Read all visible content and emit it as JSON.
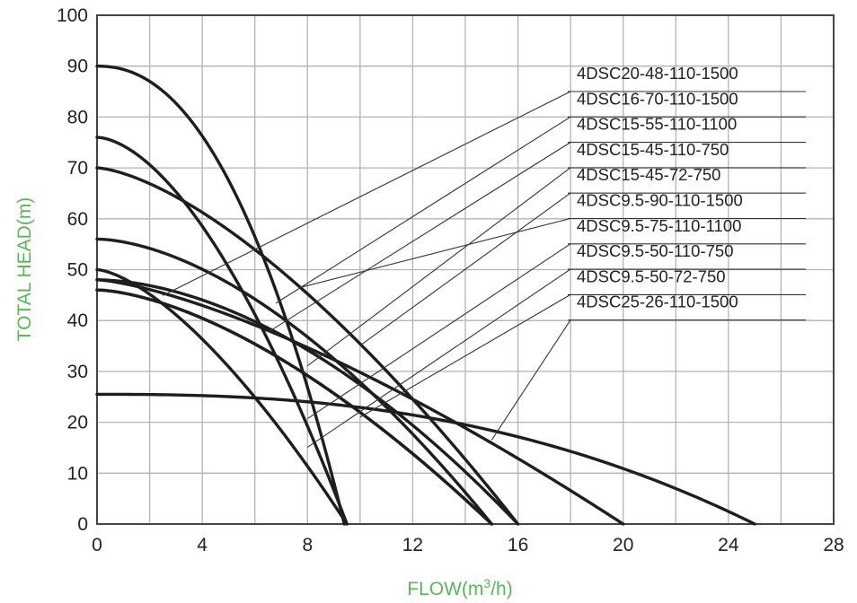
{
  "chart_data": {
    "type": "line",
    "title": "",
    "xlabel_main": "FLOW(m",
    "xlabel_sup": "3",
    "xlabel_tail": "/h)",
    "ylabel": "TOTAL HEAD(m)",
    "xlim": [
      0,
      28
    ],
    "ylim": [
      0,
      100
    ],
    "x_ticks": [
      0,
      4,
      8,
      12,
      16,
      20,
      24,
      28
    ],
    "y_ticks": [
      0,
      10,
      20,
      30,
      40,
      50,
      60,
      70,
      80,
      90,
      100
    ],
    "x_grid_step": 2,
    "y_grid_step": 10,
    "grid": true,
    "legend_position": "top-right",
    "series": [
      {
        "name": "4DSC20-48-110-1500",
        "shutoff": 48,
        "max_flow": 20,
        "shape": 1.4,
        "points": [
          [
            0,
            48
          ],
          [
            2,
            47.1
          ],
          [
            4,
            45.3
          ],
          [
            6,
            42.6
          ],
          [
            8,
            39.1
          ],
          [
            10,
            34.8
          ],
          [
            12,
            29.7
          ],
          [
            14,
            23.8
          ],
          [
            16,
            17
          ],
          [
            18,
            9.1
          ],
          [
            20,
            0
          ]
        ],
        "label_anchor": [
          2.5,
          44.9
        ]
      },
      {
        "name": "4DSC16-70-110-1500",
        "shutoff": 70,
        "max_flow": 16,
        "shape": 1.5,
        "points": [
          [
            0,
            70
          ],
          [
            2,
            68.2
          ],
          [
            4,
            64.9
          ],
          [
            6,
            60.4
          ],
          [
            8,
            54.9
          ],
          [
            10,
            48.4
          ],
          [
            12,
            40.7
          ],
          [
            14,
            29.5
          ],
          [
            16,
            0
          ]
        ],
        "label_anchor": [
          6.8,
          43.4
        ]
      },
      {
        "name": "4DSC15-55-110-1100",
        "shutoff": 56,
        "max_flow": 15,
        "shape": 1.7,
        "points": [
          [
            0,
            56
          ],
          [
            2,
            55
          ],
          [
            4,
            52.7
          ],
          [
            6,
            49.1
          ],
          [
            8,
            44.1
          ],
          [
            10,
            37.8
          ],
          [
            12,
            29.6
          ],
          [
            13,
            24.4
          ],
          [
            14,
            17.7
          ],
          [
            15,
            0
          ]
        ],
        "label_anchor": [
          6.5,
          37.7
        ]
      },
      {
        "name": "4DSC15-45-110-750",
        "shutoff": 46,
        "max_flow": 15,
        "shape": 1.6,
        "points": [
          [
            0,
            46
          ],
          [
            2,
            44.8
          ],
          [
            4,
            42.4
          ],
          [
            6,
            38.9
          ],
          [
            8,
            34.4
          ],
          [
            10,
            29
          ],
          [
            12,
            22.3
          ],
          [
            13,
            18
          ],
          [
            14,
            12.4
          ],
          [
            15,
            0
          ]
        ],
        "label_anchor": [
          8,
          31.1
        ]
      },
      {
        "name": "4DSC15-45-72-750",
        "shutoff": 48,
        "max_flow": 16,
        "shape": 1.8,
        "points": [
          [
            0,
            48
          ],
          [
            2,
            47.3
          ],
          [
            4,
            45.7
          ],
          [
            6,
            43.2
          ],
          [
            8,
            39.8
          ],
          [
            10,
            35.4
          ],
          [
            12,
            29.9
          ],
          [
            14,
            21.8
          ],
          [
            15,
            16.5
          ],
          [
            16,
            0
          ]
        ],
        "label_anchor": [
          10,
          35.1
        ]
      },
      {
        "name": "4DSC9.5-90-110-1500",
        "shutoff": 90,
        "max_flow": 9.4,
        "shape": 2.2,
        "points": [
          [
            0,
            90
          ],
          [
            1,
            89.3
          ],
          [
            2,
            87.4
          ],
          [
            3,
            84.3
          ],
          [
            4,
            79.8
          ],
          [
            5,
            73.9
          ],
          [
            6,
            66.2
          ],
          [
            7,
            56.5
          ],
          [
            8,
            43.5
          ],
          [
            8.7,
            31
          ],
          [
            9.2,
            17.7
          ],
          [
            9.4,
            0
          ]
        ],
        "label_anchor": [
          7.8,
          46.6
        ]
      },
      {
        "name": "4DSC9.5-75-110-1100",
        "shutoff": 76,
        "max_flow": 9.5,
        "shape": 1.7,
        "points": [
          [
            0,
            76
          ],
          [
            1,
            74.3
          ],
          [
            2,
            70.9
          ],
          [
            3,
            66.2
          ],
          [
            4,
            60.3
          ],
          [
            5,
            53.3
          ],
          [
            6,
            45
          ],
          [
            7,
            35.6
          ],
          [
            8,
            24.1
          ],
          [
            9,
            11.7
          ],
          [
            9.5,
            0
          ]
        ],
        "label_anchor": [
          8,
          20.7
        ]
      },
      {
        "name": "4DSC9.5-50-110-750",
        "shutoff": 50,
        "max_flow": 9.5,
        "shape": 1.5,
        "points": [
          [
            0,
            50
          ],
          [
            1,
            48.7
          ],
          [
            2,
            46.3
          ],
          [
            3,
            43
          ],
          [
            4,
            38.9
          ],
          [
            5,
            34
          ],
          [
            6,
            28.5
          ],
          [
            7,
            22.2
          ],
          [
            8,
            15.1
          ],
          [
            9,
            7
          ],
          [
            9.5,
            0
          ]
        ],
        "label_anchor": [
          8,
          15.1
        ]
      },
      {
        "name": "4DSC9.5-50-72-750",
        "shutoff": 46,
        "max_flow": 15,
        "shape": 1.6,
        "points": [
          [
            0,
            46
          ],
          [
            2,
            44.8
          ],
          [
            4,
            42.4
          ],
          [
            6,
            38.9
          ],
          [
            8,
            34.4
          ],
          [
            10,
            29
          ],
          [
            12,
            22.3
          ],
          [
            14,
            12.4
          ],
          [
            15,
            0
          ]
        ],
        "label_anchor": [
          10,
          21
        ]
      },
      {
        "name": "4DSC25-26-110-1500",
        "shutoff": 25.5,
        "max_flow": 25,
        "shape": 2.5,
        "points": [
          [
            0,
            25.5
          ],
          [
            4,
            24.4
          ],
          [
            8,
            22.1
          ],
          [
            12,
            19.1
          ],
          [
            15,
            16.5
          ],
          [
            18,
            12.9
          ],
          [
            21,
            8.4
          ],
          [
            23,
            4.8
          ],
          [
            25,
            0
          ]
        ],
        "label_anchor": [
          15,
          16.5
        ]
      }
    ]
  }
}
